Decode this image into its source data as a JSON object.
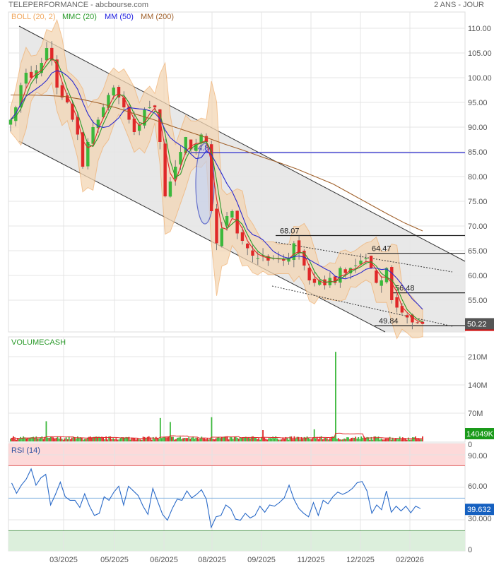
{
  "header": {
    "title": "TELEPERFORMANCE - abcbourse.com",
    "range": "2 ANS - JOUR"
  },
  "legend": [
    {
      "label": "BOLL (20, 2)",
      "color": "#f0a860"
    },
    {
      "label": "MMC (20)",
      "color": "#2a9a2a"
    },
    {
      "label": "MM (50)",
      "color": "#2020e0"
    },
    {
      "label": "MM (200)",
      "color": "#a0602a"
    }
  ],
  "colors": {
    "up": "#3cb83c",
    "down": "#e02828",
    "channel": "#e6e6e6",
    "boll_fill": "#f3d6b4",
    "boll_line": "#f0b070",
    "mm20": "#e02828",
    "mm50": "#2a2ad0",
    "mm200": "#a0602a",
    "mmc20": "#2a9a2a"
  },
  "chart_data": [
    {
      "type": "candlestick",
      "panel": "price",
      "ylim": [
        48,
        112
      ],
      "yticks": [
        "110.00",
        "105.00",
        "100.00",
        "95.00",
        "90.00",
        "85.00",
        "80.00",
        "75.00",
        "70.00",
        "65.00",
        "60.00",
        "55.00"
      ],
      "ytick_values": [
        110,
        105,
        100,
        95,
        90,
        85,
        80,
        75,
        70,
        65,
        60,
        55
      ],
      "last_price": "50.22",
      "close": [
        91.5,
        94,
        98.5,
        101,
        100,
        101.5,
        103,
        106,
        103.5,
        98,
        96,
        95,
        91.5,
        88.5,
        82,
        87,
        90,
        91.5,
        94,
        96.5,
        98,
        96,
        94,
        91.5,
        89,
        90.5,
        93.5,
        94,
        94,
        87,
        76,
        79,
        82,
        85,
        88,
        85.5,
        86.5,
        88.5,
        87,
        73,
        66.5,
        69.5,
        72,
        73,
        68.5,
        67,
        65.5,
        64,
        63.5,
        64,
        63,
        63.5,
        63.5,
        63,
        63.5,
        66.5,
        64.5,
        62,
        59,
        58.5,
        59,
        58,
        59.5,
        58.5,
        61.5,
        60.5,
        61.5,
        62,
        63,
        63.5,
        61.5,
        58.5,
        59,
        61.5,
        55,
        53.5,
        52.5,
        51.5,
        50.5,
        50.5,
        50.2
      ],
      "mm200": [
        96.5,
        96.5,
        96.4,
        96.2,
        95.6,
        94.8,
        93.8,
        92.6,
        91.5,
        90.2,
        89,
        87.8,
        86.5,
        85.3,
        84,
        82.8,
        81.5,
        80,
        78.5,
        76.5,
        74.5,
        72.5,
        70.6,
        69
      ],
      "levels": [
        {
          "label": "84.84",
          "value": 84.84,
          "color": "#2a2ad0"
        },
        {
          "label": "68.07",
          "value": 68.07,
          "color": "#222222"
        },
        {
          "label": "64.47",
          "value": 64.47,
          "color": "#222222"
        },
        {
          "label": "56.48",
          "value": 56.48,
          "color": "#222222"
        },
        {
          "label": "49.84",
          "value": 49.84,
          "color": "#222222"
        }
      ]
    },
    {
      "type": "bar",
      "panel": "volume",
      "title": "VOLUMECASH",
      "ylim": [
        0,
        245
      ],
      "yticks": [
        "210M",
        "140M",
        "70M",
        "0"
      ],
      "ytick_values": [
        210,
        140,
        70,
        0
      ],
      "last_value": "14049K",
      "base_volume_m": 8,
      "spikes": [
        {
          "index": 7,
          "value": 50
        },
        {
          "index": 29,
          "value": 58
        },
        {
          "index": 31,
          "value": 48
        },
        {
          "index": 39,
          "value": 60
        },
        {
          "index": 49,
          "value": 28
        },
        {
          "index": 59,
          "value": 30
        },
        {
          "index": 63,
          "value": 222
        },
        {
          "index": 76,
          "value": 28
        }
      ]
    },
    {
      "type": "line",
      "panel": "rsi",
      "title": "RSI (14)",
      "ylim": [
        0,
        100
      ],
      "yticks": [
        "90.00",
        "60.00",
        "30.000",
        "0"
      ],
      "ytick_values": [
        90,
        60,
        30,
        0
      ],
      "overbought": 80,
      "middle": 50,
      "oversold": 20,
      "last_value": "39.632",
      "values": [
        64,
        54.5,
        62,
        67.6,
        77,
        62,
        68.7,
        72,
        43.7,
        53.5,
        64.8,
        51.3,
        48,
        48,
        41.5,
        54,
        42.6,
        34,
        36,
        51.3,
        48,
        55.6,
        61,
        43.7,
        61,
        56.7,
        52.4,
        42.6,
        35,
        59,
        47,
        35,
        29.6,
        40.4,
        49,
        48,
        56.7,
        50.2,
        53.5,
        57.8,
        49,
        23,
        32.8,
        34,
        43.7,
        40.4,
        30.6,
        29.6,
        36,
        31.7,
        34,
        42.6,
        37,
        43.7,
        42.6,
        45.9,
        50.2,
        62,
        49,
        40.4,
        36,
        32.8,
        45.9,
        34,
        48,
        44.8,
        51.3,
        55.6,
        53.5,
        55.6,
        59,
        64.3,
        65.4,
        56.7,
        36,
        43.7,
        39.3,
        56.7,
        37,
        42.6,
        38.2,
        42.6,
        36.5,
        42.6,
        40.4
      ]
    }
  ],
  "xaxis": {
    "ticks": [
      "03/2025",
      "05/2025",
      "06/2025",
      "08/2025",
      "09/2025",
      "11/2025",
      "12/2025",
      "02/2026"
    ]
  }
}
